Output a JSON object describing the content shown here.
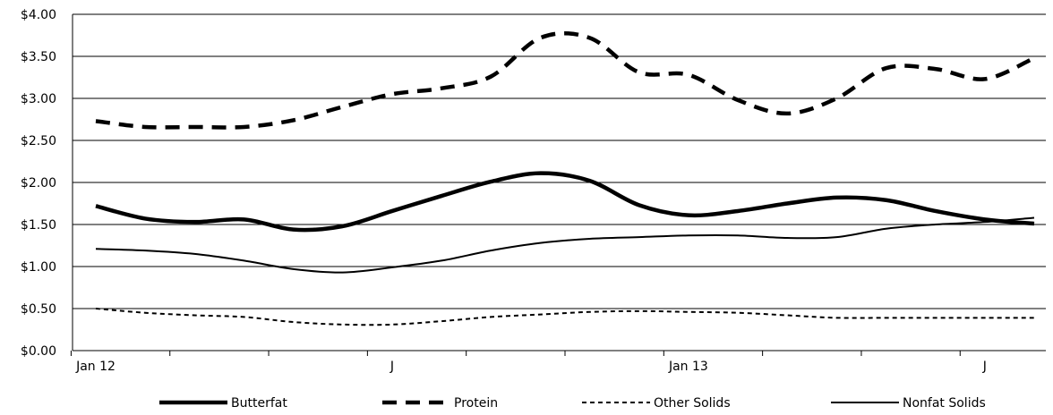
{
  "chart_data": {
    "type": "line",
    "title": "",
    "xlabel": "",
    "ylabel": "",
    "ylim": [
      0,
      4
    ],
    "y_ticks": [
      "$0.00",
      "$0.50",
      "$1.00",
      "$1.50",
      "$2.00",
      "$2.50",
      "$3.00",
      "$3.50",
      "$4.00"
    ],
    "x_tick_labels": [
      {
        "index": 0,
        "label": "Jan 12"
      },
      {
        "index": 6,
        "label": "J"
      },
      {
        "index": 12,
        "label": "Jan 13"
      },
      {
        "index": 18,
        "label": "J"
      }
    ],
    "grid": "horizontal",
    "legend_position": "bottom",
    "x": [
      "Jan 12",
      "Feb 12",
      "Mar 12",
      "Apr 12",
      "May 12",
      "Jun 12",
      "Jul 12",
      "Aug 12",
      "Sep 12",
      "Oct 12",
      "Nov 12",
      "Dec 12",
      "Jan 13",
      "Feb 13",
      "Mar 13",
      "Apr 13",
      "May 13",
      "Jun 13",
      "Jul 13",
      "Aug 13"
    ],
    "series": [
      {
        "name": "Butterfat",
        "style": "thick-solid",
        "values": [
          1.72,
          1.57,
          1.53,
          1.56,
          1.44,
          1.48,
          1.66,
          1.84,
          2.01,
          2.11,
          2.02,
          1.73,
          1.61,
          1.66,
          1.75,
          1.82,
          1.79,
          1.66,
          1.56,
          1.51
        ]
      },
      {
        "name": "Protein",
        "style": "thick-dashed",
        "values": [
          2.73,
          2.66,
          2.66,
          2.66,
          2.74,
          2.9,
          3.05,
          3.12,
          3.26,
          3.72,
          3.72,
          3.31,
          3.28,
          2.98,
          2.82,
          3.0,
          3.36,
          3.35,
          3.23,
          3.48
        ]
      },
      {
        "name": "Other Solids",
        "style": "thin-dashed",
        "values": [
          0.5,
          0.45,
          0.42,
          0.4,
          0.34,
          0.31,
          0.31,
          0.35,
          0.4,
          0.43,
          0.46,
          0.47,
          0.46,
          0.45,
          0.42,
          0.39,
          0.39,
          0.39,
          0.39,
          0.39
        ]
      },
      {
        "name": "Nonfat Solids",
        "style": "thin-solid",
        "values": [
          1.21,
          1.19,
          1.15,
          1.07,
          0.97,
          0.93,
          0.99,
          1.07,
          1.19,
          1.28,
          1.33,
          1.35,
          1.37,
          1.37,
          1.34,
          1.35,
          1.45,
          1.5,
          1.53,
          1.58
        ]
      }
    ]
  },
  "colors": {
    "line": "#000000",
    "grid": "#000000",
    "background": "#ffffff"
  }
}
